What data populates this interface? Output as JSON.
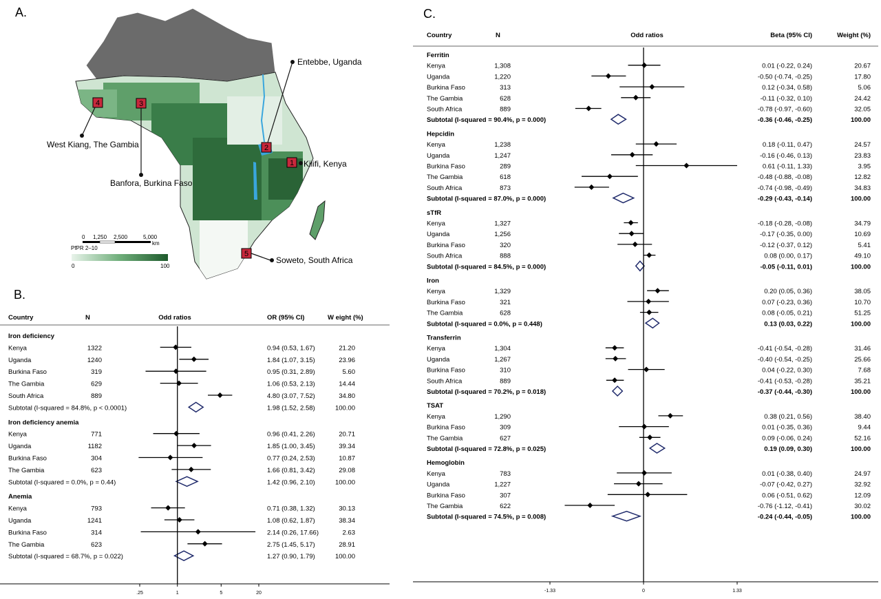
{
  "panel_labels": {
    "a": "A.",
    "b": "B.",
    "c": "C."
  },
  "map": {
    "sites": [
      {
        "num": "1",
        "label": "Kilifi, Kenya"
      },
      {
        "num": "2",
        "label": "Entebbe, Uganda"
      },
      {
        "num": "3",
        "label": "Banfora, Burkina Faso"
      },
      {
        "num": "4",
        "label": "West Kiang, The Gambia"
      },
      {
        "num": "5",
        "label": "Soweto, South Africa"
      }
    ],
    "scale_ticks": [
      "0",
      "1,250",
      "2,500",
      "5,000"
    ],
    "scale_unit": "km",
    "legend_title": "PfPR 2–10",
    "legend_min": "0",
    "legend_max": "100",
    "colors": {
      "land_grey": "#6b6b6b",
      "water": "#3aa6dd",
      "site_box": "#c8283c",
      "low": "#e8f3ea",
      "high": "#1e5a2c"
    }
  },
  "chart_data": [
    {
      "type": "forest",
      "panel": "B",
      "columns": {
        "country": "Country",
        "n": "N",
        "plot": "Odd ratios",
        "est": "OR (95% CI)",
        "weight": "W eight (%)"
      },
      "scale": "log",
      "ticks": [
        0.25,
        1,
        5,
        20
      ],
      "tick_labels": [
        ".25",
        "1",
        "5",
        "20"
      ],
      "xlim": [
        0.25,
        20
      ],
      "groups": [
        {
          "name": "Iron deficiency",
          "rows": [
            {
              "country": "Kenya",
              "n": "1322",
              "est": 0.94,
              "lo": 0.53,
              "hi": 1.67,
              "ci_text": "0.94 (0.53, 1.67)",
              "weight": "21.20"
            },
            {
              "country": "Uganda",
              "n": "1240",
              "est": 1.84,
              "lo": 1.07,
              "hi": 3.15,
              "ci_text": "1.84 (1.07, 3.15)",
              "weight": "23.96"
            },
            {
              "country": "Burkina Faso",
              "n": "319",
              "est": 0.95,
              "lo": 0.31,
              "hi": 2.89,
              "ci_text": "0.95 (0.31, 2.89)",
              "weight": "5.60"
            },
            {
              "country": "The Gambia",
              "n": "629",
              "est": 1.06,
              "lo": 0.53,
              "hi": 2.13,
              "ci_text": "1.06 (0.53, 2.13)",
              "weight": "14.44"
            },
            {
              "country": "South Africa",
              "n": "889",
              "est": 4.8,
              "lo": 3.07,
              "hi": 7.52,
              "ci_text": "4.80 (3.07, 7.52)",
              "weight": "34.80"
            }
          ],
          "subtotal": {
            "label": "Subtotal  (I-squared = 84.8%, p < 0.0001)",
            "est": 1.98,
            "lo": 1.52,
            "hi": 2.58,
            "ci_text": "1.98 (1.52, 2.58)",
            "weight": "100.00"
          }
        },
        {
          "name": "Iron deficiency anemia",
          "rows": [
            {
              "country": "Kenya",
              "n": "771",
              "est": 0.96,
              "lo": 0.41,
              "hi": 2.26,
              "ci_text": "0.96 (0.41, 2.26)",
              "weight": "20.71"
            },
            {
              "country": "Uganda",
              "n": "1182",
              "est": 1.85,
              "lo": 1.0,
              "hi": 3.45,
              "ci_text": "1.85 (1.00, 3.45)",
              "weight": "39.34"
            },
            {
              "country": "Burkina Faso",
              "n": "304",
              "est": 0.77,
              "lo": 0.24,
              "hi": 2.53,
              "ci_text": "0.77 (0.24, 2.53)",
              "weight": "10.87"
            },
            {
              "country": "The Gambia",
              "n": "623",
              "est": 1.66,
              "lo": 0.81,
              "hi": 3.42,
              "ci_text": "1.66 (0.81, 3.42)",
              "weight": "29.08"
            }
          ],
          "subtotal": {
            "label": "Subtotal  (I-squared = 0.0%, p = 0.44)",
            "est": 1.42,
            "lo": 0.96,
            "hi": 2.1,
            "ci_text": "1.42 (0.96, 2.10)",
            "weight": "100.00"
          }
        },
        {
          "name": "Anemia",
          "rows": [
            {
              "country": "Kenya",
              "n": "793",
              "est": 0.71,
              "lo": 0.38,
              "hi": 1.32,
              "ci_text": "0.71 (0.38, 1.32)",
              "weight": "30.13"
            },
            {
              "country": "Uganda",
              "n": "1241",
              "est": 1.08,
              "lo": 0.62,
              "hi": 1.87,
              "ci_text": "1.08 (0.62, 1.87)",
              "weight": "38.34"
            },
            {
              "country": "Burkina Faso",
              "n": "314",
              "est": 2.14,
              "lo": 0.26,
              "hi": 17.66,
              "ci_text": "2.14 (0.26, 17.66)",
              "weight": "2.63"
            },
            {
              "country": "The Gambia",
              "n": "623",
              "est": 2.75,
              "lo": 1.45,
              "hi": 5.17,
              "ci_text": "2.75 (1.45, 5.17)",
              "weight": "28.91"
            }
          ],
          "subtotal": {
            "label": "Subtotal  (I-squared = 68.7%, p = 0.022)",
            "est": 1.27,
            "lo": 0.9,
            "hi": 1.79,
            "ci_text": "1.27 (0.90, 1.79)",
            "weight": "100.00"
          }
        }
      ]
    },
    {
      "type": "forest",
      "panel": "C",
      "columns": {
        "country": "Country",
        "n": "N",
        "plot": "Odd ratios",
        "est": "Beta (95% CI)",
        "weight": "Weight (%)"
      },
      "scale": "linear",
      "ticks": [
        -1.33,
        0,
        1.33
      ],
      "tick_labels": [
        "-1.33",
        "0",
        "1.33"
      ],
      "xlim": [
        -1.33,
        1.33
      ],
      "groups": [
        {
          "name": "Ferritin",
          "rows": [
            {
              "country": "Kenya",
              "n": "1,308",
              "est": 0.01,
              "lo": -0.22,
              "hi": 0.24,
              "ci_text": "0.01 (-0.22, 0.24)",
              "weight": "20.67"
            },
            {
              "country": "Uganda",
              "n": "1,220",
              "est": -0.5,
              "lo": -0.74,
              "hi": -0.25,
              "ci_text": "-0.50 (-0.74, -0.25)",
              "weight": "17.80"
            },
            {
              "country": "Burkina Faso",
              "n": "313",
              "est": 0.12,
              "lo": -0.34,
              "hi": 0.58,
              "ci_text": "0.12 (-0.34, 0.58)",
              "weight": "5.06"
            },
            {
              "country": "The Gambia",
              "n": "628",
              "est": -0.11,
              "lo": -0.32,
              "hi": 0.1,
              "ci_text": "-0.11 (-0.32, 0.10)",
              "weight": "24.42"
            },
            {
              "country": "South Africa",
              "n": "889",
              "est": -0.78,
              "lo": -0.97,
              "hi": -0.6,
              "ci_text": "-0.78 (-0.97, -0.60)",
              "weight": "32.05"
            }
          ],
          "subtotal": {
            "label": "Subtotal  (I-squared = 90.4%, p = 0.000)",
            "est": -0.36,
            "lo": -0.46,
            "hi": -0.25,
            "ci_text": "-0.36 (-0.46, -0.25)",
            "weight": "100.00"
          }
        },
        {
          "name": "Hepcidin",
          "rows": [
            {
              "country": "Kenya",
              "n": "1,238",
              "est": 0.18,
              "lo": -0.11,
              "hi": 0.47,
              "ci_text": "0.18 (-0.11, 0.47)",
              "weight": "24.57"
            },
            {
              "country": "Uganda",
              "n": "1,247",
              "est": -0.16,
              "lo": -0.46,
              "hi": 0.13,
              "ci_text": "-0.16 (-0.46, 0.13)",
              "weight": "23.83"
            },
            {
              "country": "Burkina Faso",
              "n": "289",
              "est": 0.61,
              "lo": -0.11,
              "hi": 1.33,
              "ci_text": "0.61 (-0.11, 1.33)",
              "weight": "3.95"
            },
            {
              "country": "The Gambia",
              "n": "618",
              "est": -0.48,
              "lo": -0.88,
              "hi": -0.08,
              "ci_text": "-0.48 (-0.88, -0.08)",
              "weight": "12.82"
            },
            {
              "country": "South Africa",
              "n": "873",
              "est": -0.74,
              "lo": -0.98,
              "hi": -0.49,
              "ci_text": "-0.74 (-0.98, -0.49)",
              "weight": "34.83"
            }
          ],
          "subtotal": {
            "label": "Subtotal  (I-squared = 87.0%, p = 0.000)",
            "est": -0.29,
            "lo": -0.43,
            "hi": -0.14,
            "ci_text": "-0.29 (-0.43, -0.14)",
            "weight": "100.00"
          }
        },
        {
          "name": "sTfR",
          "rows": [
            {
              "country": "Kenya",
              "n": "1,327",
              "est": -0.18,
              "lo": -0.28,
              "hi": -0.08,
              "ci_text": "-0.18 (-0.28, -0.08)",
              "weight": "34.79"
            },
            {
              "country": "Uganda",
              "n": "1,256",
              "est": -0.17,
              "lo": -0.35,
              "hi": 0.0,
              "ci_text": "-0.17 (-0.35, 0.00)",
              "weight": "10.69"
            },
            {
              "country": "Burkina Faso",
              "n": "320",
              "est": -0.12,
              "lo": -0.37,
              "hi": 0.12,
              "ci_text": "-0.12 (-0.37, 0.12)",
              "weight": "5.41"
            },
            {
              "country": "South Africa",
              "n": "888",
              "est": 0.08,
              "lo": 0.0,
              "hi": 0.17,
              "ci_text": "0.08 (0.00, 0.17)",
              "weight": "49.10"
            }
          ],
          "subtotal": {
            "label": "Subtotal  (I-squared = 84.5%, p = 0.000)",
            "est": -0.05,
            "lo": -0.11,
            "hi": 0.01,
            "ci_text": "-0.05 (-0.11, 0.01)",
            "weight": "100.00"
          }
        },
        {
          "name": "Iron",
          "rows": [
            {
              "country": "Kenya",
              "n": "1,329",
              "est": 0.2,
              "lo": 0.05,
              "hi": 0.36,
              "ci_text": "0.20 (0.05, 0.36)",
              "weight": "38.05"
            },
            {
              "country": "Burkina Faso",
              "n": "321",
              "est": 0.07,
              "lo": -0.23,
              "hi": 0.36,
              "ci_text": "0.07 (-0.23, 0.36)",
              "weight": "10.70"
            },
            {
              "country": "The Gambia",
              "n": "628",
              "est": 0.08,
              "lo": -0.05,
              "hi": 0.21,
              "ci_text": "0.08 (-0.05, 0.21)",
              "weight": "51.25"
            }
          ],
          "subtotal": {
            "label": "Subtotal  (I-squared = 0.0%, p = 0.448)",
            "est": 0.13,
            "lo": 0.03,
            "hi": 0.22,
            "ci_text": "0.13 (0.03, 0.22)",
            "weight": "100.00"
          }
        },
        {
          "name": "Transferrin",
          "rows": [
            {
              "country": "Kenya",
              "n": "1,304",
              "est": -0.41,
              "lo": -0.54,
              "hi": -0.28,
              "ci_text": "-0.41 (-0.54, -0.28)",
              "weight": "31.46"
            },
            {
              "country": "Uganda",
              "n": "1,267",
              "est": -0.4,
              "lo": -0.54,
              "hi": -0.25,
              "ci_text": "-0.40 (-0.54, -0.25)",
              "weight": "25.66"
            },
            {
              "country": "Burkina Faso",
              "n": "310",
              "est": 0.04,
              "lo": -0.22,
              "hi": 0.3,
              "ci_text": "0.04 (-0.22, 0.30)",
              "weight": "7.68"
            },
            {
              "country": "South Africa",
              "n": "889",
              "est": -0.41,
              "lo": -0.53,
              "hi": -0.28,
              "ci_text": "-0.41 (-0.53, -0.28)",
              "weight": "35.21"
            }
          ],
          "subtotal": {
            "label": "Subtotal  (I-squared = 70.2%, p = 0.018)",
            "est": -0.37,
            "lo": -0.44,
            "hi": -0.3,
            "ci_text": "-0.37 (-0.44, -0.30)",
            "weight": "100.00"
          }
        },
        {
          "name": "TSAT",
          "rows": [
            {
              "country": "Kenya",
              "n": "1,290",
              "est": 0.38,
              "lo": 0.21,
              "hi": 0.56,
              "ci_text": "0.38 (0.21, 0.56)",
              "weight": "38.40"
            },
            {
              "country": "Burkina Faso",
              "n": "309",
              "est": 0.01,
              "lo": -0.35,
              "hi": 0.36,
              "ci_text": "0.01 (-0.35, 0.36)",
              "weight": "9.44"
            },
            {
              "country": "The Gambia",
              "n": "627",
              "est": 0.09,
              "lo": -0.06,
              "hi": 0.24,
              "ci_text": "0.09 (-0.06, 0.24)",
              "weight": "52.16"
            }
          ],
          "subtotal": {
            "label": "Subtotal  (I-squared = 72.8%, p = 0.025)",
            "est": 0.19,
            "lo": 0.09,
            "hi": 0.3,
            "ci_text": "0.19 (0.09, 0.30)",
            "weight": "100.00"
          }
        },
        {
          "name": "Hemoglobin",
          "rows": [
            {
              "country": "Kenya",
              "n": "783",
              "est": 0.01,
              "lo": -0.38,
              "hi": 0.4,
              "ci_text": "0.01 (-0.38, 0.40)",
              "weight": "24.97"
            },
            {
              "country": "Uganda",
              "n": "1,227",
              "est": -0.07,
              "lo": -0.42,
              "hi": 0.27,
              "ci_text": "-0.07 (-0.42, 0.27)",
              "weight": "32.92"
            },
            {
              "country": "Burkina Faso",
              "n": "307",
              "est": 0.06,
              "lo": -0.51,
              "hi": 0.62,
              "ci_text": "0.06 (-0.51, 0.62)",
              "weight": "12.09"
            },
            {
              "country": "The Gambia",
              "n": "622",
              "est": -0.76,
              "lo": -1.12,
              "hi": -0.41,
              "ci_text": "-0.76 (-1.12, -0.41)",
              "weight": "30.02"
            }
          ],
          "subtotal": {
            "label": "Subtotal  (I-squared = 74.5%, p = 0.008)",
            "est": -0.24,
            "lo": -0.44,
            "hi": -0.05,
            "ci_text": "-0.24 (-0.44, -0.05)",
            "weight": "100.00"
          }
        }
      ]
    }
  ]
}
